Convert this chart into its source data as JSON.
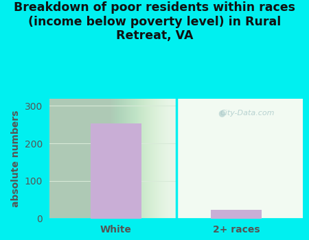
{
  "title": "Breakdown of poor residents within races\n(income below poverty level) in Rural\nRetreat, VA",
  "categories": [
    "White",
    "2+ races"
  ],
  "values": [
    253,
    22
  ],
  "bar_color": "#c9aed6",
  "ylabel": "absolute numbers",
  "ylim": [
    0,
    320
  ],
  "yticks": [
    0,
    100,
    200,
    300
  ],
  "background_outer": "#00f0f0",
  "background_left": "#d6ecd6",
  "background_right": "#eaf5ea",
  "grid_color": "#e8f0e8",
  "title_color": "#111111",
  "axis_label_color": "#555555",
  "tick_label_color": "#555555",
  "watermark": "City-Data.com",
  "title_fontsize": 12.5,
  "ylabel_fontsize": 10,
  "tick_fontsize": 10
}
